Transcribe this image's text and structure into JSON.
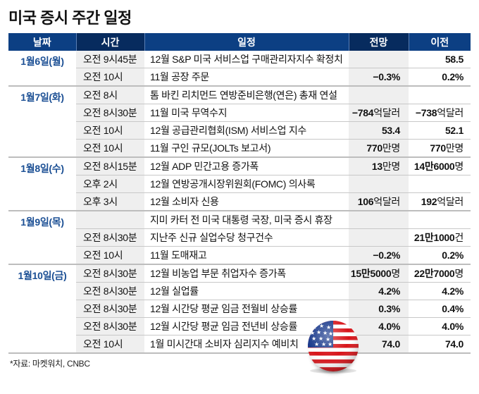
{
  "title": "미국 증시 주간 일정",
  "headers": {
    "date": "날짜",
    "time": "시간",
    "event": "일정",
    "forecast": "전망",
    "previous": "이전"
  },
  "groups": [
    {
      "date": "1월6일(월)",
      "rows": [
        {
          "time": "오전 9시45분",
          "event": "12월 S&P 미국 서비스업 구매관리자지수 확정치",
          "forecast": "",
          "previous": "58.5"
        },
        {
          "time": "오전 10시",
          "event": "11월 공장 주문",
          "forecast": "−0.3%",
          "previous": "0.2%"
        }
      ]
    },
    {
      "date": "1월7일(화)",
      "rows": [
        {
          "time": "오전 8시",
          "event": "톰 바킨 리치먼드 연방준비은행(연은) 총재 연설",
          "forecast": "",
          "previous": ""
        },
        {
          "time": "오전 8시30분",
          "event": "11월 미국 무역수지",
          "forecast": "−784억달러",
          "previous": "−738억달러"
        },
        {
          "time": "오전 10시",
          "event": "12월 공급관리협회(ISM) 서비스업 지수",
          "forecast": "53.4",
          "previous": "52.1"
        },
        {
          "time": "오전 10시",
          "event": "11월 구인 규모(JOLTs 보고서)",
          "forecast": "770만명",
          "previous": "770만명"
        }
      ]
    },
    {
      "date": "1월8일(수)",
      "rows": [
        {
          "time": "오전 8시15분",
          "event": "12월 ADP 민간고용 증가폭",
          "forecast": "13만명",
          "previous": "14만6000명"
        },
        {
          "time": "오후 2시",
          "event": "12월 연방공개시장위원회(FOMC) 의사록",
          "forecast": "",
          "previous": ""
        },
        {
          "time": "오후 3시",
          "event": "12월 소비자 신용",
          "forecast": "106억달러",
          "previous": "192억달러"
        }
      ]
    },
    {
      "date": "1월9일(목)",
      "rows": [
        {
          "time": "",
          "event": "지미 카터 전 미국 대통령 국장, 미국 증시 휴장",
          "forecast": "",
          "previous": ""
        },
        {
          "time": "오전 8시30분",
          "event": "지난주 신규 실업수당 청구건수",
          "forecast": "",
          "previous": "21만1000건"
        },
        {
          "time": "오전 10시",
          "event": "11월 도매재고",
          "forecast": "−0.2%",
          "previous": "0.2%"
        }
      ]
    },
    {
      "date": "1월10일(금)",
      "rows": [
        {
          "time": "오전 8시30분",
          "event": "12월 비농업 부문 취업자수 증가폭",
          "forecast": "15만5000명",
          "previous": "22만7000명"
        },
        {
          "time": "오전 8시30분",
          "event": "12월 실업률",
          "forecast": "4.2%",
          "previous": "4.2%"
        },
        {
          "time": "오전 8시30분",
          "event": "12월 시간당 평균 임금 전월비 상승률",
          "forecast": "0.3%",
          "previous": "0.4%"
        },
        {
          "time": "오전 8시30분",
          "event": "12월 시간당 평균 임금 전년비 상승률",
          "forecast": "4.0%",
          "previous": "4.0%"
        },
        {
          "time": "오전 10시",
          "event": "1월 미시간대 소비자 심리지수 예비치",
          "forecast": "74.0",
          "previous": "74.0"
        }
      ]
    }
  ],
  "source": "*자료: 마켓워치, CNBC",
  "decoration": {
    "flag_icon": "us-flag-sphere-icon"
  },
  "colors": {
    "header_primary": "#0c3f83",
    "header_dark": "#072b5e",
    "date_text": "#1b4f94",
    "shaded_column": "#efefef"
  }
}
